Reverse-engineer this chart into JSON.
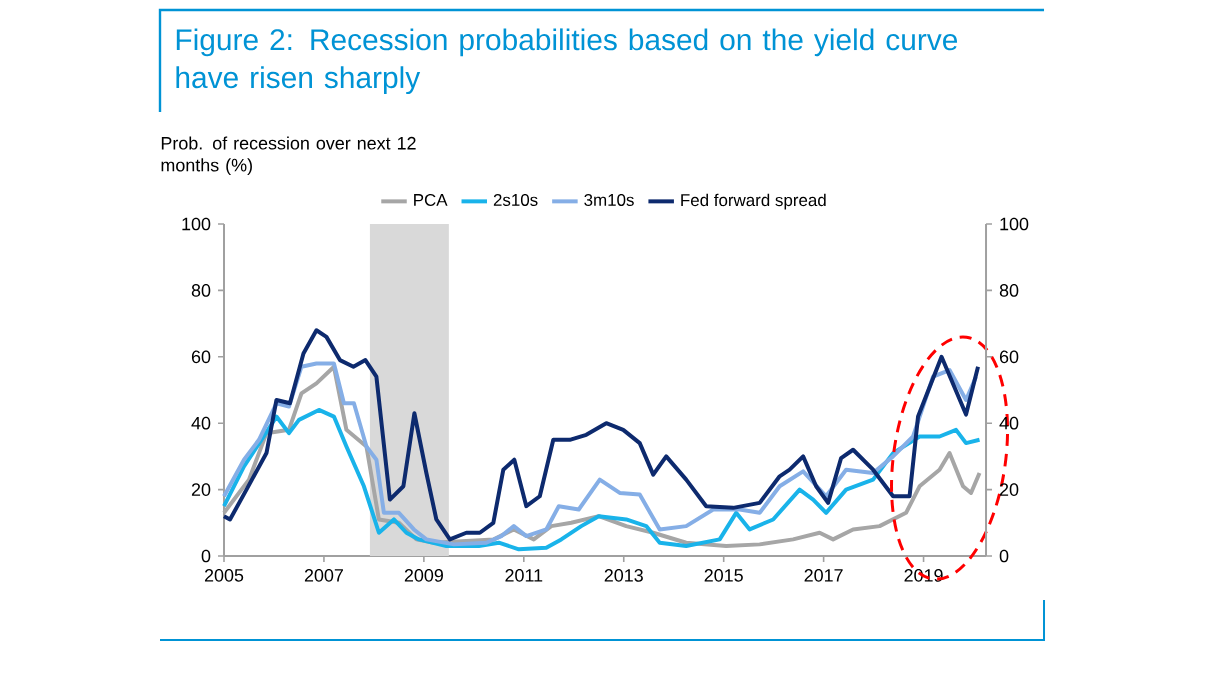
{
  "chart_data": {
    "type": "line",
    "title": "Figure 2: Recession probabilities based on the yield curve have risen sharply",
    "ylabel": "Prob. of recession over next 12 months (%)",
    "xlim": [
      2005,
      2020.25
    ],
    "xticks": [
      2005,
      2007,
      2009,
      2011,
      2013,
      2015,
      2017,
      2019
    ],
    "ylim": [
      0,
      100
    ],
    "yticks": [
      0,
      20,
      40,
      60,
      80,
      100
    ],
    "y2lim": [
      0,
      100
    ],
    "y2ticks": [
      0,
      20,
      40,
      60,
      80,
      100
    ],
    "legend": "top",
    "line_style": "solid",
    "bands": [
      {
        "axis": "x",
        "from": 2007.92,
        "to": 2009.5,
        "color": "#d9d9d9"
      }
    ],
    "series": [
      {
        "name": "PCA",
        "color": "#a6a6a6",
        "x": [
          2005.0,
          2005.5,
          2005.85,
          2006.3,
          2006.55,
          2006.85,
          2007.2,
          2007.45,
          2007.85,
          2008.1,
          2008.5,
          2008.85,
          2009.2,
          2009.85,
          2010.4,
          2010.8,
          2011.2,
          2011.55,
          2011.95,
          2012.5,
          2013.05,
          2013.59,
          2014.25,
          2015.05,
          2015.72,
          2016.39,
          2016.92,
          2017.19,
          2017.59,
          2018.12,
          2018.65,
          2018.92,
          2019.32,
          2019.52,
          2019.79,
          2019.95,
          2020.12
        ],
        "values": [
          13,
          23,
          37,
          38,
          49,
          52,
          57,
          38,
          33,
          11,
          10,
          5,
          4,
          null,
          5,
          8,
          5,
          9,
          10,
          12,
          9,
          7,
          4,
          3,
          3.5,
          5,
          7,
          5,
          8,
          9,
          13,
          21,
          26,
          31,
          21,
          19,
          25
        ]
      },
      {
        "name": "2s10s",
        "color": "#19b3ea",
        "x": [
          2005.0,
          2005.4,
          2005.75,
          2006.05,
          2006.3,
          2006.5,
          2006.9,
          2007.2,
          2007.45,
          2007.8,
          2008.1,
          2008.4,
          2008.65,
          2008.9,
          2009.45,
          2010.1,
          2010.5,
          2010.9,
          2011.45,
          2011.75,
          2012.15,
          2012.5,
          2013.05,
          2013.45,
          2013.72,
          2014.25,
          2014.92,
          2015.25,
          2015.52,
          2015.99,
          2016.52,
          2016.79,
          2017.05,
          2017.45,
          2017.99,
          2018.39,
          2018.92,
          2019.32,
          2019.65,
          2019.85,
          2020.12
        ],
        "values": [
          15,
          27,
          35,
          42,
          37,
          41,
          44,
          42,
          33,
          21,
          7,
          11,
          7,
          5,
          3,
          3,
          4,
          2,
          2.5,
          5,
          9,
          12,
          11,
          9,
          4,
          3,
          5,
          13,
          8,
          11,
          20,
          17,
          13,
          20,
          23,
          31,
          36,
          36,
          38,
          34,
          35
        ]
      },
      {
        "name": "3m10s",
        "color": "#85aee6",
        "x": [
          2005.0,
          2005.4,
          2005.7,
          2006.05,
          2006.3,
          2006.55,
          2006.85,
          2007.2,
          2007.4,
          2007.6,
          2007.85,
          2008.05,
          2008.2,
          2008.5,
          2008.8,
          2009.05,
          2009.6,
          2010.25,
          2010.55,
          2010.8,
          2011.05,
          2011.45,
          2011.7,
          2012.1,
          2012.52,
          2012.92,
          2013.32,
          2013.72,
          2014.25,
          2014.79,
          2015.32,
          2015.72,
          2016.12,
          2016.59,
          2017.05,
          2017.45,
          2017.99,
          2018.39,
          2018.79,
          2019.19,
          2019.52,
          2019.85,
          2020.05
        ],
        "values": [
          18,
          29,
          35,
          46,
          45,
          57,
          58,
          58,
          46,
          46,
          33,
          29,
          13,
          13,
          8,
          5,
          3.5,
          4,
          6,
          9,
          6,
          8,
          15,
          14,
          23,
          19,
          18.5,
          8,
          9,
          14,
          14,
          13,
          21,
          25.5,
          18,
          26,
          25,
          30,
          36,
          54,
          56,
          47,
          54
        ]
      },
      {
        "name": "Fed forward spread",
        "color": "#0d2a6e",
        "x": [
          2005.0,
          2005.12,
          2005.45,
          2005.85,
          2006.05,
          2006.32,
          2006.59,
          2006.85,
          2007.05,
          2007.32,
          2007.59,
          2007.83,
          2008.05,
          2008.32,
          2008.59,
          2008.81,
          2009.05,
          2009.25,
          2009.52,
          2009.85,
          2010.12,
          2010.39,
          2010.59,
          2010.81,
          2011.05,
          2011.32,
          2011.59,
          2011.92,
          2012.25,
          2012.65,
          2012.99,
          2013.32,
          2013.59,
          2013.85,
          2014.25,
          2014.65,
          2015.19,
          2015.72,
          2016.12,
          2016.32,
          2016.59,
          2016.85,
          2017.09,
          2017.35,
          2017.59,
          2017.99,
          2018.39,
          2018.72,
          2018.89,
          2019.36,
          2019.85,
          2020.09
        ],
        "values": [
          12,
          11,
          20,
          31,
          47,
          46,
          61,
          68,
          66,
          59,
          57,
          59,
          54,
          17,
          21,
          43,
          25,
          11,
          5,
          7,
          7,
          10,
          26,
          29,
          15,
          18,
          35,
          35,
          36.5,
          40,
          38,
          34,
          24.5,
          30,
          23,
          15,
          14.5,
          16,
          24,
          26,
          30,
          21,
          16,
          29.5,
          32,
          26,
          18,
          18,
          42,
          60,
          42.6,
          57
        ]
      }
    ]
  }
}
